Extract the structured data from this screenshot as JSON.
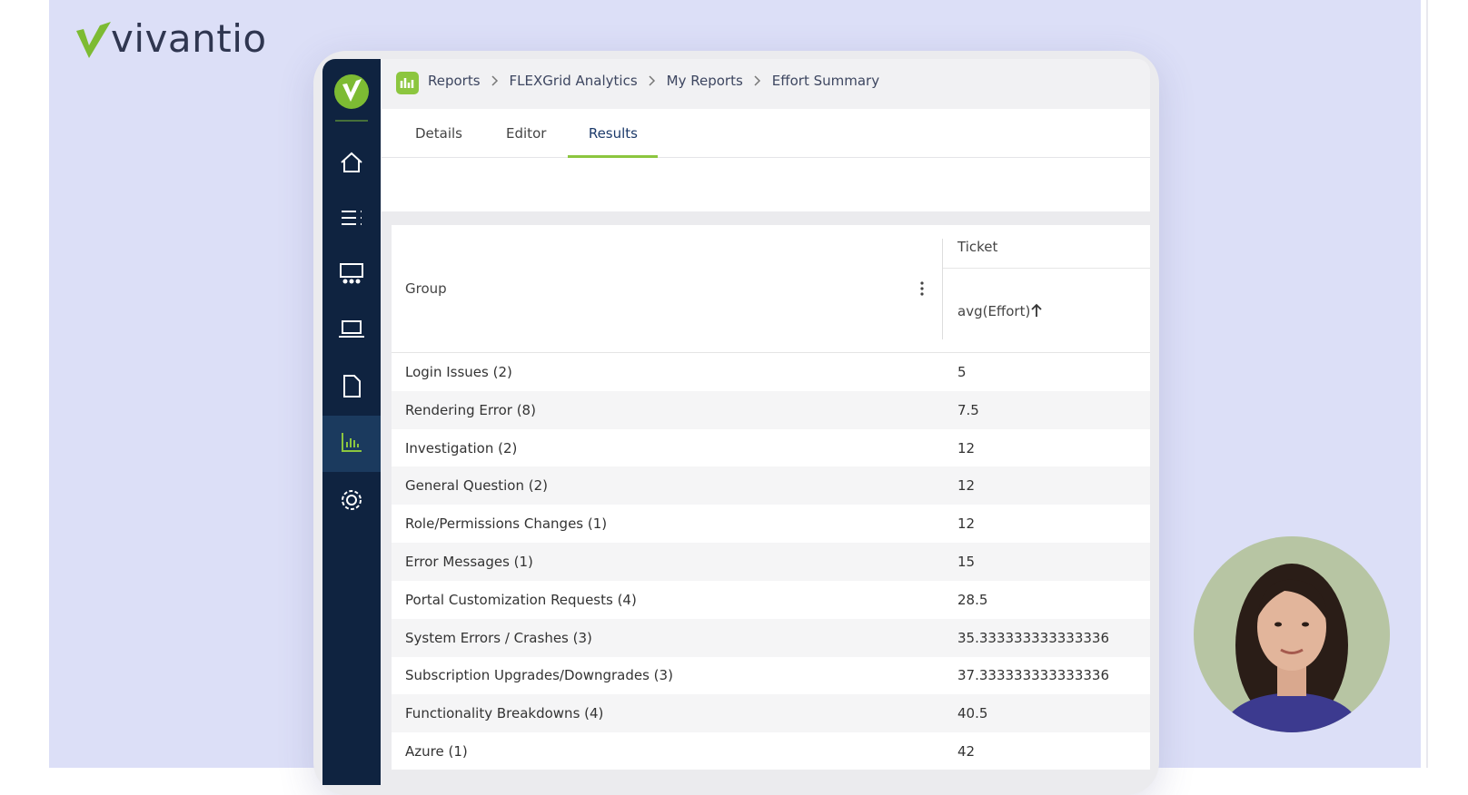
{
  "logo": "vivantio",
  "breadcrumb": [
    "Reports",
    "FLEXGrid Analytics",
    "My Reports",
    "Effort Summary"
  ],
  "tabs": [
    "Details",
    "Editor",
    "Results"
  ],
  "active_tab": 2,
  "table": {
    "group_header": "Group",
    "column_group": "Ticket",
    "column": "avg(Effort)",
    "rows": [
      [
        "Login Issues (2)",
        "5"
      ],
      [
        "Rendering Error (8)",
        "7.5"
      ],
      [
        "Investigation (2)",
        "12"
      ],
      [
        "General Question (2)",
        "12"
      ],
      [
        "Role/Permissions Changes (1)",
        "12"
      ],
      [
        "Error Messages (1)",
        "15"
      ],
      [
        "Portal Customization Requests (4)",
        "28.5"
      ],
      [
        "System Errors / Crashes (3)",
        "35.333333333333336"
      ],
      [
        "Subscription Upgrades/Downgrades (3)",
        "37.333333333333336"
      ],
      [
        "Functionality Breakdowns (4)",
        "40.5"
      ],
      [
        "Azure (1)",
        "42"
      ]
    ]
  }
}
